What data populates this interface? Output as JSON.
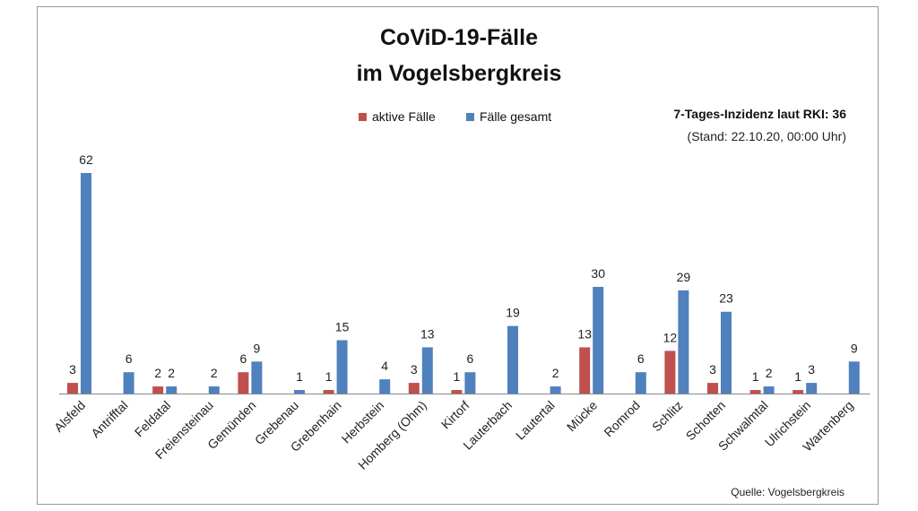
{
  "chart_data": {
    "type": "bar",
    "title": [
      "CoViD-19-Fälle",
      "im Vogelsbergkreis"
    ],
    "categories": [
      "Alsfeld",
      "Antrifftal",
      "Feldatal",
      "Freiensteinau",
      "Gemünden",
      "Grebenau",
      "Grebenhain",
      "Herbstein",
      "Homberg (Ohm)",
      "Kirtorf",
      "Lauterbach",
      "Lautertal",
      "Mücke",
      "Romrod",
      "Schlitz",
      "Schotten",
      "Schwalmtal",
      "Ulrichstein",
      "Wartenberg"
    ],
    "series": [
      {
        "name": "aktive Fälle",
        "color": "#c0504d",
        "values": [
          3,
          null,
          2,
          null,
          6,
          null,
          1,
          null,
          3,
          1,
          null,
          null,
          13,
          null,
          12,
          3,
          1,
          1,
          null
        ]
      },
      {
        "name": "Fälle gesamt",
        "color": "#4f81bd",
        "values": [
          62,
          6,
          2,
          2,
          9,
          1,
          15,
          4,
          13,
          6,
          19,
          2,
          30,
          6,
          29,
          23,
          2,
          3,
          9
        ]
      }
    ],
    "ylim": [
      0,
      62
    ],
    "grid": false,
    "legend": "top-center"
  },
  "annotations": {
    "incidence": "7-Tages-Inzidenz laut RKI: 36",
    "stand": "(Stand: 22.10.20, 00:00 Uhr)",
    "source": "Quelle: Vogelsbergkreis"
  }
}
